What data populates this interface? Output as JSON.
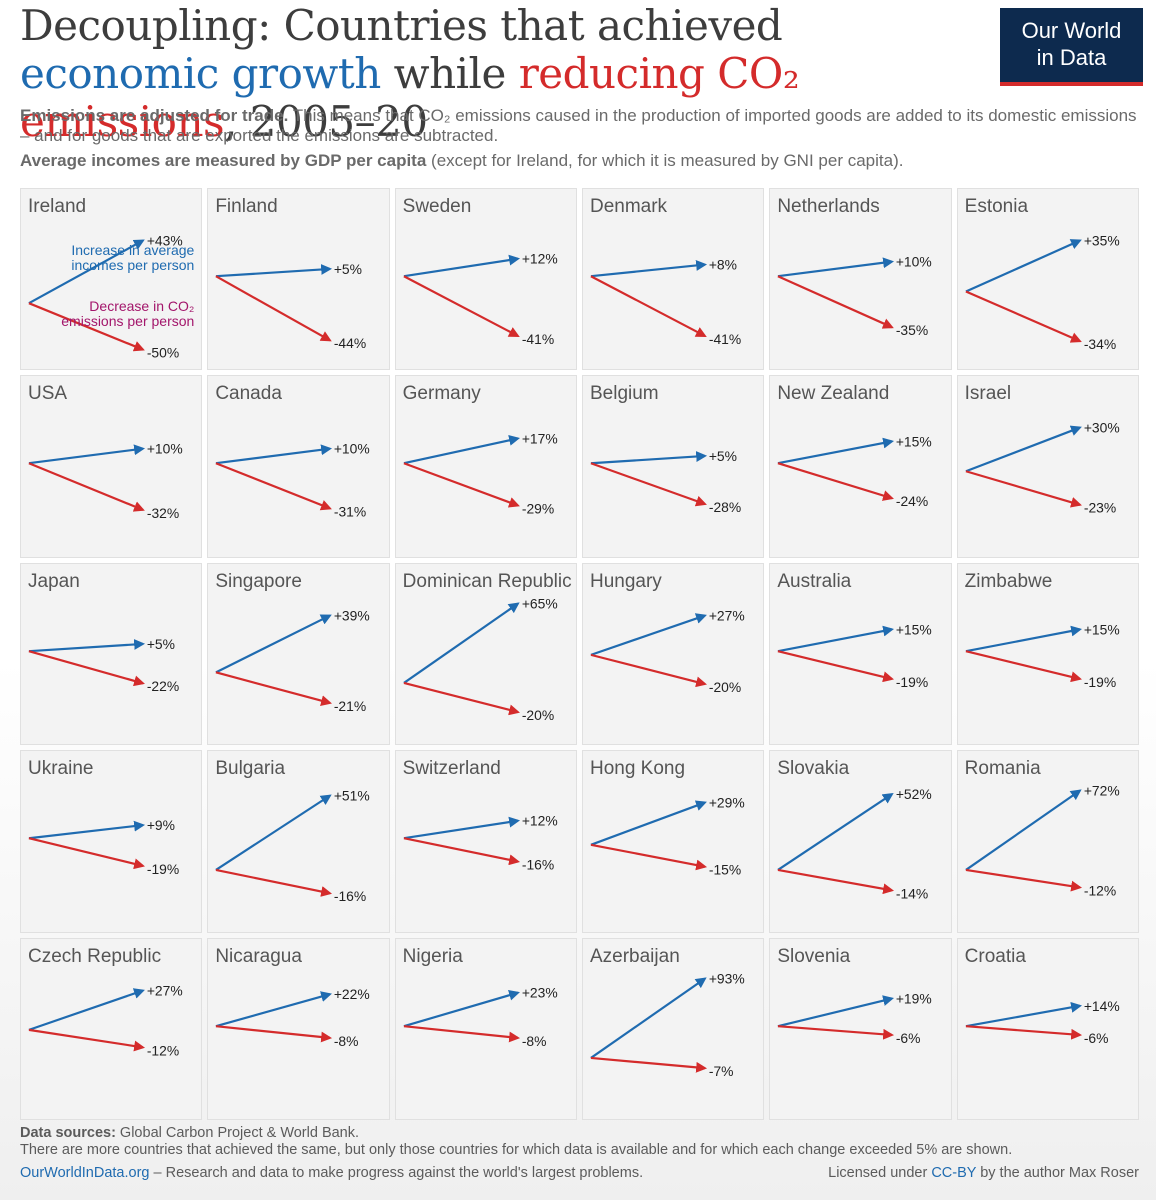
{
  "title": {
    "part1": "Decoupling: Countries that achieved ",
    "economic_growth": "economic growth",
    "part2": " while ",
    "reducing": "reducing CO₂ emissions",
    "part3": ", 2005–20"
  },
  "logo": {
    "line1": "Our World",
    "line2": "in Data"
  },
  "subtitle": {
    "line1_bold": "Emissions are adjusted for trade.",
    "line1_rest": " This means that CO₂ emissions caused in the production of imported goods are added to its domestic emissions – and for goods that are exported the emissions are subtracted.",
    "line2_bold": "Average incomes are measured by GDP per capita",
    "line2_rest": " (except for Ireland, for which it is measured by GNI per capita)."
  },
  "annotations": {
    "increase": "Increase in average incomes per person",
    "decrease": "Decrease in CO₂ emissions per person"
  },
  "colors": {
    "income": "#1f6bb0",
    "emissions": "#d42b2b"
  },
  "chart_data": {
    "type": "small-multiples-arrows",
    "series": [
      {
        "name": "Increase in average incomes per person",
        "color": "#1f6bb0"
      },
      {
        "name": "Decrease in CO₂ emissions per person",
        "color": "#d42b2b"
      }
    ],
    "countries": [
      {
        "name": "Ireland",
        "income": 43,
        "co2": -50
      },
      {
        "name": "Finland",
        "income": 5,
        "co2": -44
      },
      {
        "name": "Sweden",
        "income": 12,
        "co2": -41
      },
      {
        "name": "Denmark",
        "income": 8,
        "co2": -41
      },
      {
        "name": "Netherlands",
        "income": 10,
        "co2": -35
      },
      {
        "name": "Estonia",
        "income": 35,
        "co2": -34
      },
      {
        "name": "USA",
        "income": 10,
        "co2": -32
      },
      {
        "name": "Canada",
        "income": 10,
        "co2": -31
      },
      {
        "name": "Germany",
        "income": 17,
        "co2": -29
      },
      {
        "name": "Belgium",
        "income": 5,
        "co2": -28
      },
      {
        "name": "New Zealand",
        "income": 15,
        "co2": -24
      },
      {
        "name": "Israel",
        "income": 30,
        "co2": -23
      },
      {
        "name": "Japan",
        "income": 5,
        "co2": -22
      },
      {
        "name": "Singapore",
        "income": 39,
        "co2": -21
      },
      {
        "name": "Dominican Republic",
        "income": 65,
        "co2": -20
      },
      {
        "name": "Hungary",
        "income": 27,
        "co2": -20
      },
      {
        "name": "Australia",
        "income": 15,
        "co2": -19
      },
      {
        "name": "Zimbabwe",
        "income": 15,
        "co2": -19
      },
      {
        "name": "Ukraine",
        "income": 9,
        "co2": -19
      },
      {
        "name": "Bulgaria",
        "income": 51,
        "co2": -16
      },
      {
        "name": "Switzerland",
        "income": 12,
        "co2": -16
      },
      {
        "name": "Hong Kong",
        "income": 29,
        "co2": -15
      },
      {
        "name": "Slovakia",
        "income": 52,
        "co2": -14
      },
      {
        "name": "Romania",
        "income": 72,
        "co2": -12
      },
      {
        "name": "Czech Republic",
        "income": 27,
        "co2": -12
      },
      {
        "name": "Nicaragua",
        "income": 22,
        "co2": -8
      },
      {
        "name": "Nigeria",
        "income": 23,
        "co2": -8
      },
      {
        "name": "Azerbaijan",
        "income": 93,
        "co2": -7
      },
      {
        "name": "Slovenia",
        "income": 19,
        "co2": -6
      },
      {
        "name": "Croatia",
        "income": 14,
        "co2": -6
      }
    ]
  },
  "footer": {
    "sources_label": "Data sources:",
    "sources": " Global Carbon Project & World Bank.",
    "note": "There are more countries that achieved the same, but only those countries for which data is available and for which each change exceeded 5% are shown.",
    "site": "OurWorldInData.org",
    "tagline": " – Research and data to make progress against the world's largest problems.",
    "license_pre": "Licensed under ",
    "license_link": "CC-BY",
    "license_post": " by the author Max Roser"
  }
}
